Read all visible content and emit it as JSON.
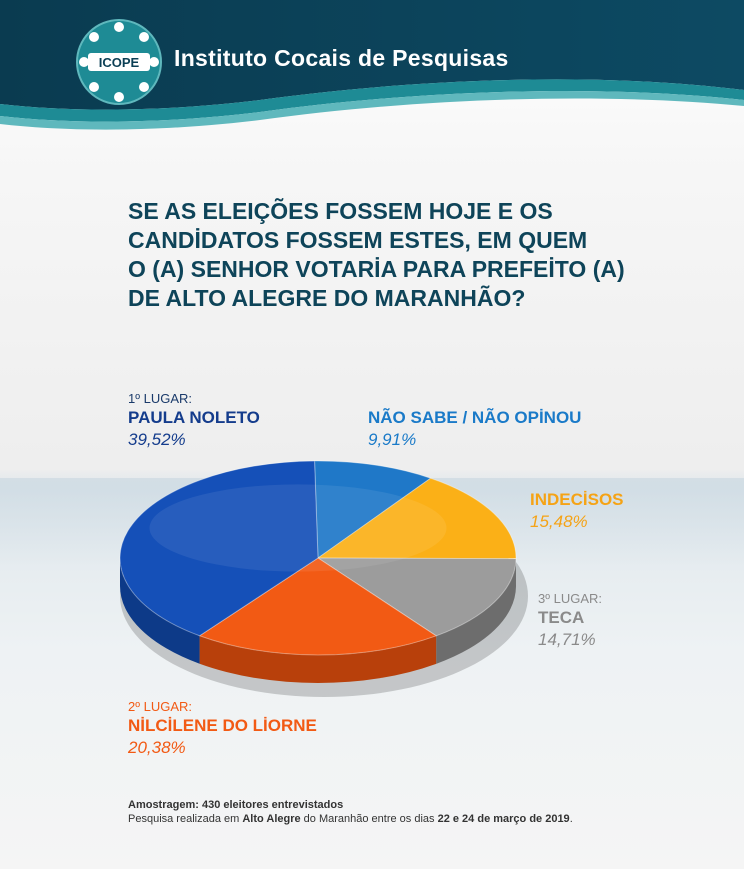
{
  "header": {
    "brand_title": "Instituto Cocais de Pesquisas",
    "logo_text": "ICOPE",
    "colors": {
      "dark": "#0b3f55",
      "teal": "#1e8b95",
      "light_teal": "#5fb8bd"
    }
  },
  "question": {
    "lines": [
      "SE AS ELEIÇÕES FOSSEM HOJE E OS",
      "CANDİDATOS FOSSEM ESTES, EM QUEM",
      "O (A) SENHOR VOTARİA PARA PREFEİTO (A)",
      "DE ALTO ALEGRE DO MARANHÃO?"
    ]
  },
  "chart_data": {
    "type": "pie",
    "title": "SE AS ELEIÇÕES FOSSEM HOJE E OS CANDİDATOS FOSSEM ESTES, EM QUEM O (A) SENHOR VOTARİA PARA PREFEİTO (A) DE ALTO ALEGRE DO MARANHÃO?",
    "slices": [
      {
        "label": "NÃO SABE / NÃO OPİNOU",
        "place": "",
        "value": 9.91,
        "value_label": "9,91%",
        "color": "#1f78c8",
        "dark": "#145592"
      },
      {
        "label": "INDECİSOS",
        "place": "",
        "value": 15.48,
        "value_label": "15,48%",
        "color": "#fbb017",
        "dark": "#c8860c"
      },
      {
        "label": "TECA",
        "place": "3º LUGAR:",
        "value": 14.71,
        "value_label": "14,71%",
        "color": "#9c9c9c",
        "dark": "#6d6d6d"
      },
      {
        "label": "NİLCİLENE DO LİORNE",
        "place": "2º LUGAR:",
        "value": 20.38,
        "value_label": "20,38%",
        "color": "#f25a14",
        "dark": "#b8400b"
      },
      {
        "label": "PAULA NOLETO",
        "place": "1º LUGAR:",
        "value": 39.52,
        "value_label": "39,52%",
        "color": "#1550b8",
        "dark": "#0d3a88"
      }
    ],
    "label_colors": {
      "paula": "#143c8c",
      "nao_sabe": "#1a7ac8",
      "indecisos": "#f5a316",
      "teca": "#8a8a8a",
      "nilcilene": "#f25a14",
      "place_default": "#1a3a6a"
    }
  },
  "footer": {
    "sample_label": "Amostragem: 430 eleitores entrevistados",
    "line2_a": "Pesquisa realizada em ",
    "line2_b": "Alto Alegre",
    "line2_c": " do Maranhão entre os dias ",
    "line2_d": "22 e 24 de março de 2019",
    "line2_e": "."
  }
}
